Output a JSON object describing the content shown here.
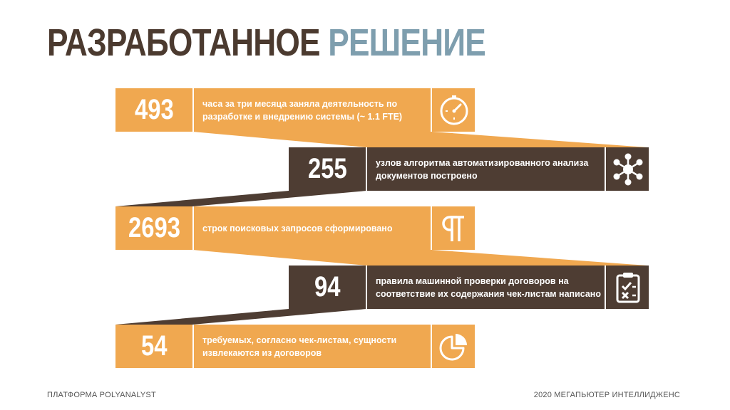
{
  "title": {
    "part1": "РАЗРАБОТАННОЕ",
    "part2": "РЕШЕНИЕ"
  },
  "colors": {
    "orange": "#f0a850",
    "brown": "#4e3d33",
    "title_dark": "#4b3a2f",
    "title_accent": "#7e9eae"
  },
  "items": [
    {
      "value": "493",
      "text": "часа за три месяца заняла деятельность по разработке и внедрению системы  (~ 1.1 FTE)",
      "icon": "stopwatch-icon"
    },
    {
      "value": "255",
      "text": "узлов алгоритма автоматизированного анализа документов построено",
      "icon": "network-nodes-icon"
    },
    {
      "value": "2693",
      "text": "строк поисковых запросов сформировано",
      "icon": "pilcrow-icon"
    },
    {
      "value": "94",
      "text": "правила машинной проверки договоров на соответствие их содержания чек-листам написано",
      "icon": "checklist-clipboard-icon"
    },
    {
      "value": "54",
      "text": "требуемых, согласно чек-листам, сущности извлекаются из договоров",
      "icon": "pie-chart-icon"
    }
  ],
  "footer": {
    "left": "ПЛАТФОРМА POLYANALYST",
    "right": "2020 МЕГАПЬЮТЕР ИНТЕЛЛИДЖЕНС"
  }
}
